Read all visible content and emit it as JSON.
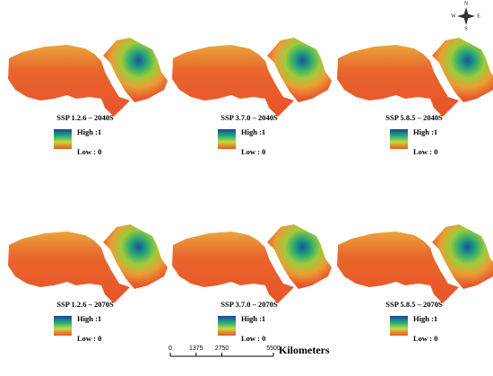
{
  "panels": [
    {
      "title": "SSP 1.2.6 – 2040S",
      "legend_high": "High :1",
      "legend_low": "Low : 0"
    },
    {
      "title": "SSP 3.7.0 – 2040S",
      "legend_high": "High :1",
      "legend_low": "Low : 0"
    },
    {
      "title": "SSP 5.8.5 – 2040S",
      "legend_high": "High :1",
      "legend_low": "Low : 0"
    },
    {
      "title": "SSP 1.2.6 – 2070S",
      "legend_high": "High :1",
      "legend_low": "Low : 0"
    },
    {
      "title": "SSP 3.7.0 – 2070S",
      "legend_high": "High :1",
      "legend_low": "Low : 0"
    },
    {
      "title": "SSP 5.8.5 – 2070S",
      "legend_high": "High :1",
      "legend_low": "Low : 0"
    }
  ],
  "scale_bar": {
    "ticks": [
      0,
      1375,
      2750,
      5500
    ],
    "unit": "Kilometers"
  },
  "compass": {
    "north": "N",
    "south": "S",
    "east": "E",
    "west": "W"
  }
}
